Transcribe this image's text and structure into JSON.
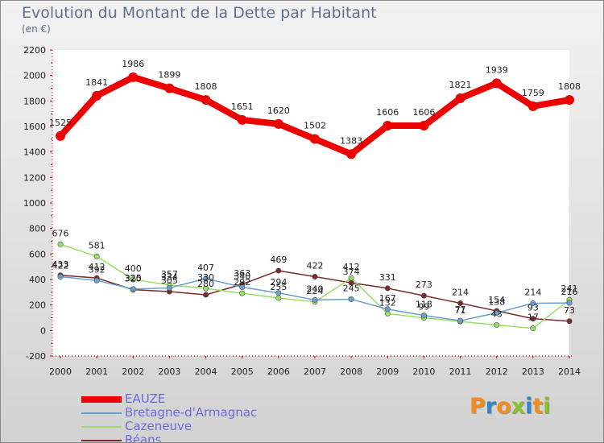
{
  "header": {
    "title": "Evolution du Montant de la Dette par Habitant",
    "unit": "(en €)"
  },
  "logo": {
    "letters": [
      "P",
      "r",
      "o",
      "x",
      "i",
      "t",
      "i"
    ],
    "colors": [
      "#f28c1c",
      "#2f86c4",
      "#f28c1c",
      "#8cbf26",
      "#2f86c4",
      "#f28c1c",
      "#8cbf26"
    ]
  },
  "chart_data": {
    "type": "line",
    "title": "Evolution du Montant de la Dette par Habitant",
    "ylabel": "(en €)",
    "xlabel": "",
    "x": [
      "2000",
      "2001",
      "2002",
      "2003",
      "2004",
      "2005",
      "2006",
      "2007",
      "2008",
      "2009",
      "2010",
      "2011",
      "2012",
      "2013",
      "2014"
    ],
    "ylim": [
      -200,
      2200
    ],
    "yticks": [
      -200,
      0,
      200,
      400,
      600,
      800,
      1000,
      1200,
      1400,
      1600,
      1800,
      2000,
      2200
    ],
    "grid": false,
    "legend": "bottom-left",
    "series": [
      {
        "name": "EAUZE",
        "color": "#ee0000",
        "values": [
          1525,
          1841,
          1986,
          1899,
          1808,
          1651,
          1620,
          1502,
          1383,
          1606,
          1606,
          1821,
          1939,
          1759,
          1808
        ]
      },
      {
        "name": "Bretagne-d'Armagnac",
        "color": "#6a9fd0",
        "values": [
          422,
          392,
          325,
          334,
          407,
          340,
          294,
          240,
          245,
          167,
          118,
          77,
          138,
          214,
          216
        ]
      },
      {
        "name": "Cazeneuve",
        "color": "#99dd66",
        "values": [
          676,
          581,
          400,
          357,
          330,
          292,
          255,
          224,
          412,
          132,
          99,
          71,
          43,
          17,
          241
        ]
      },
      {
        "name": "Réans",
        "color": "#7a2a2a",
        "values": [
          433,
          412,
          320,
          305,
          280,
          363,
          469,
          422,
          374,
          331,
          273,
          214,
          154,
          93,
          73
        ]
      }
    ]
  }
}
